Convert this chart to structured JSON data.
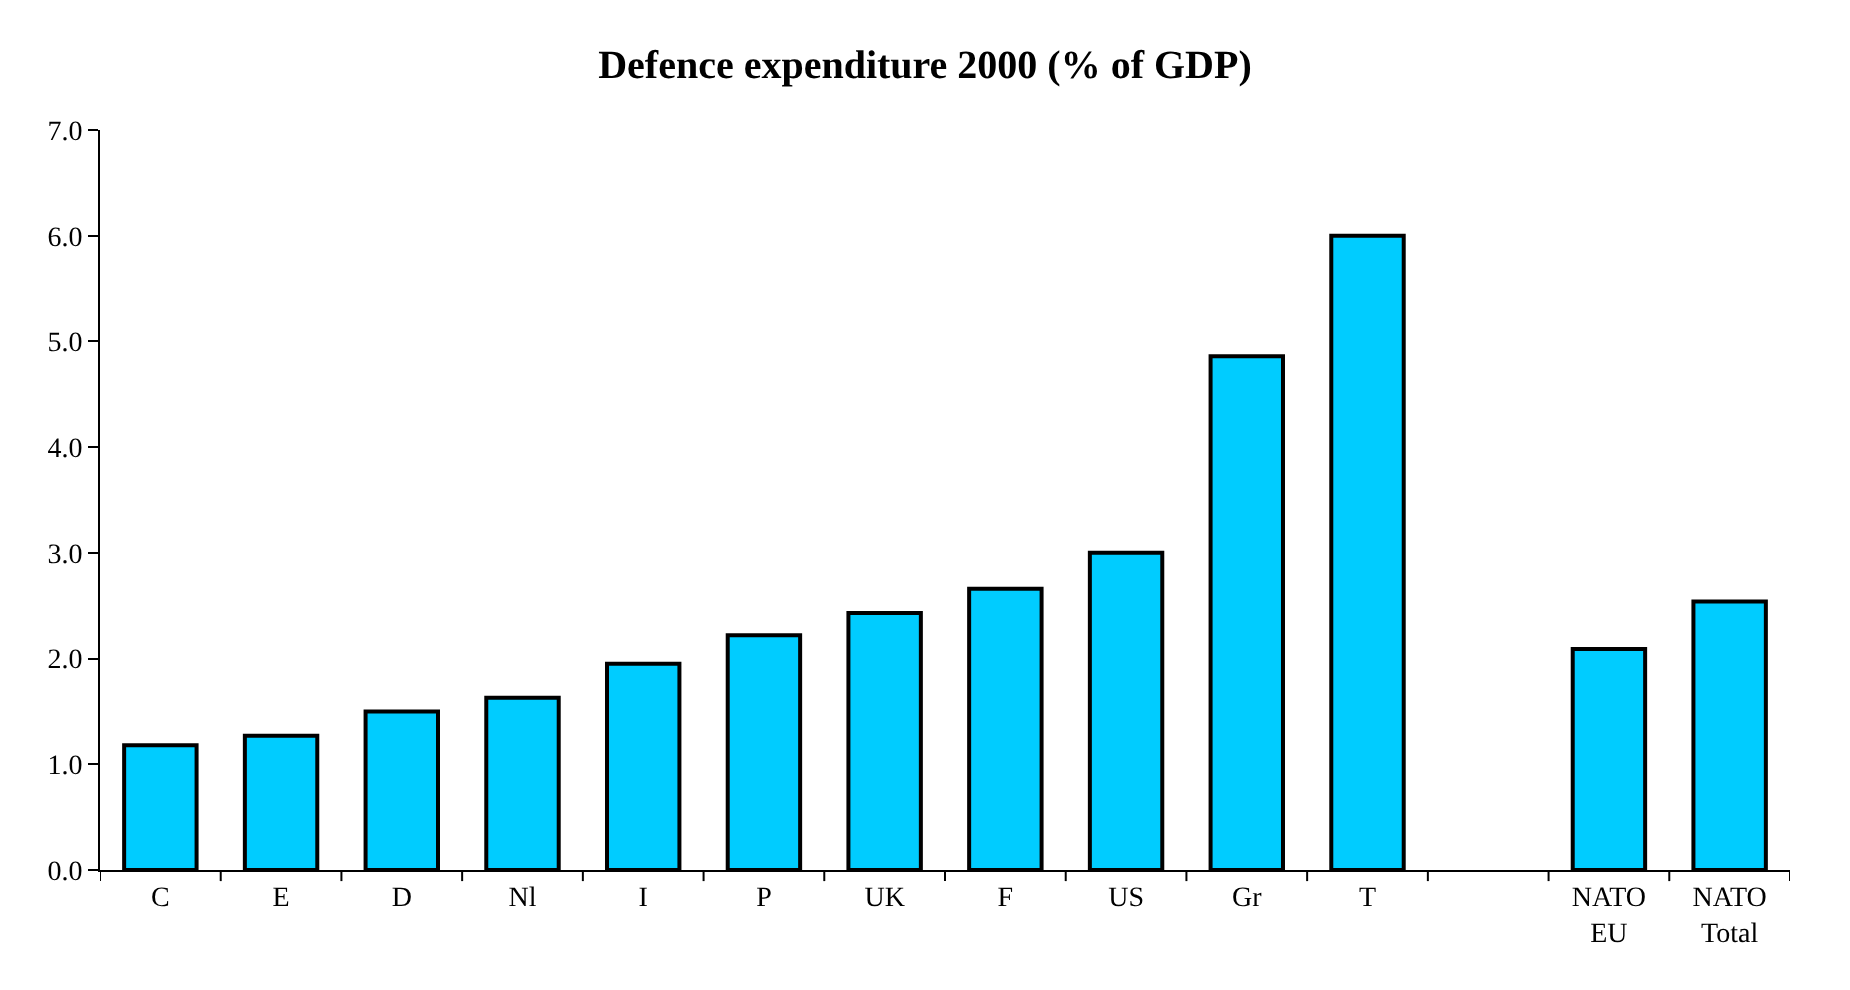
{
  "chart_data": {
    "type": "bar",
    "title": "Defence expenditure 2000 (% of GDP)",
    "categories": [
      "C",
      "E",
      "D",
      "Nl",
      "I",
      "P",
      "UK",
      "F",
      "US",
      "Gr",
      "T",
      null,
      "NATO EU",
      "NATO Total"
    ],
    "values": [
      1.18,
      1.27,
      1.5,
      1.63,
      1.95,
      2.22,
      2.43,
      2.66,
      3.0,
      4.86,
      6.0,
      null,
      2.09,
      2.54
    ],
    "color": "#00ccff",
    "ylim": [
      0,
      7
    ],
    "yticks": [
      {
        "value": 0,
        "label": "0.0"
      },
      {
        "value": 1,
        "label": "1.0"
      },
      {
        "value": 2,
        "label": "2.0"
      },
      {
        "value": 3,
        "label": "3.0"
      },
      {
        "value": 4,
        "label": "4.0"
      },
      {
        "value": 5,
        "label": "5.0"
      },
      {
        "value": 6,
        "label": "6.0"
      },
      {
        "value": 7,
        "label": "7.0"
      }
    ],
    "legend": false
  }
}
